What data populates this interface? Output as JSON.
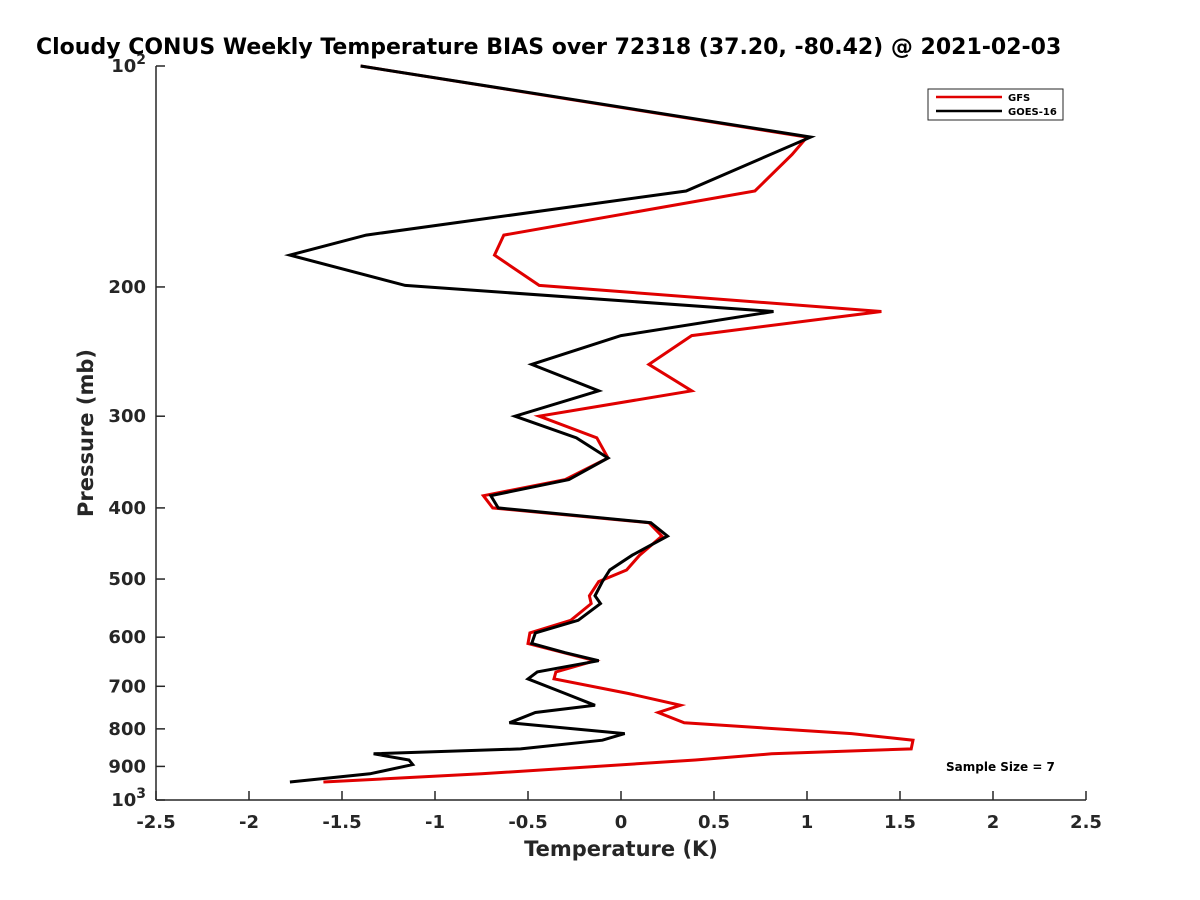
{
  "chart_data": {
    "type": "line",
    "title": "Cloudy CONUS Weekly Temperature BIAS over 72318 (37.20, -80.42) @ 2021-02-03",
    "xlabel": "Temperature (K)",
    "ylabel": "Pressure (mb)",
    "xlim": [
      -2.5,
      2.5
    ],
    "ylim": [
      100,
      1000
    ],
    "yscale": "log",
    "y_reversed": true,
    "grid": false,
    "legend_position": "top-right",
    "x_ticks": [
      -2.5,
      -2,
      -1.5,
      -1,
      -0.5,
      0,
      0.5,
      1,
      1.5,
      2,
      2.5
    ],
    "x_tick_labels": [
      "-2.5",
      "-2",
      "-1.5",
      "-1",
      "-0.5",
      "0",
      "0.5",
      "1",
      "1.5",
      "2",
      "2.5"
    ],
    "y_ticks": [
      100,
      200,
      300,
      400,
      500,
      600,
      700,
      800,
      900,
      1000
    ],
    "y_tick_labels": [
      {
        "base": "10",
        "exp": "2"
      },
      {
        "base": "200",
        "exp": ""
      },
      {
        "base": "300",
        "exp": ""
      },
      {
        "base": "400",
        "exp": ""
      },
      {
        "base": "500",
        "exp": ""
      },
      {
        "base": "600",
        "exp": ""
      },
      {
        "base": "700",
        "exp": ""
      },
      {
        "base": "800",
        "exp": ""
      },
      {
        "base": "900",
        "exp": ""
      },
      {
        "base": "10",
        "exp": "3"
      }
    ],
    "annotation": "Sample Size = 7",
    "series": [
      {
        "name": "GFS",
        "color": "#e00000",
        "points": [
          [
            -1.4,
            100
          ],
          [
            1.0,
            125
          ],
          [
            0.92,
            132
          ],
          [
            0.72,
            148
          ],
          [
            -0.63,
            170
          ],
          [
            -0.68,
            181
          ],
          [
            -0.44,
            199
          ],
          [
            1.4,
            216
          ],
          [
            0.38,
            233
          ],
          [
            0.15,
            255
          ],
          [
            0.38,
            277
          ],
          [
            -0.44,
            300
          ],
          [
            -0.13,
            321
          ],
          [
            -0.07,
            342
          ],
          [
            -0.3,
            366
          ],
          [
            -0.74,
            385
          ],
          [
            -0.69,
            400
          ],
          [
            0.15,
            419
          ],
          [
            0.22,
            437
          ],
          [
            0.1,
            464
          ],
          [
            0.03,
            486
          ],
          [
            -0.12,
            504
          ],
          [
            -0.17,
            527
          ],
          [
            -0.16,
            540
          ],
          [
            -0.27,
            569
          ],
          [
            -0.49,
            592
          ],
          [
            -0.5,
            612
          ],
          [
            -0.14,
            646
          ],
          [
            -0.35,
            669
          ],
          [
            -0.36,
            684
          ],
          [
            0.04,
            716
          ],
          [
            0.32,
            743
          ],
          [
            0.2,
            760
          ],
          [
            0.34,
            785
          ],
          [
            1.24,
            812
          ],
          [
            1.57,
            829
          ],
          [
            1.56,
            852
          ],
          [
            0.81,
            865
          ],
          [
            0.4,
            882
          ],
          [
            -0.75,
            921
          ],
          [
            -1.6,
            945
          ]
        ]
      },
      {
        "name": "GOES-16",
        "color": "#000000",
        "points": [
          [
            -1.4,
            100
          ],
          [
            1.02,
            125
          ],
          [
            0.35,
            148
          ],
          [
            -1.37,
            170
          ],
          [
            -1.78,
            181
          ],
          [
            -1.16,
            199
          ],
          [
            0.82,
            216
          ],
          [
            0.0,
            233
          ],
          [
            -0.48,
            255
          ],
          [
            -0.12,
            277
          ],
          [
            -0.57,
            300
          ],
          [
            -0.24,
            321
          ],
          [
            -0.07,
            342
          ],
          [
            -0.28,
            366
          ],
          [
            -0.7,
            385
          ],
          [
            -0.66,
            400
          ],
          [
            0.16,
            419
          ],
          [
            0.25,
            437
          ],
          [
            0.06,
            464
          ],
          [
            -0.06,
            486
          ],
          [
            -0.1,
            504
          ],
          [
            -0.14,
            527
          ],
          [
            -0.11,
            540
          ],
          [
            -0.23,
            569
          ],
          [
            -0.46,
            592
          ],
          [
            -0.48,
            612
          ],
          [
            -0.3,
            630
          ],
          [
            -0.12,
            646
          ],
          [
            -0.45,
            669
          ],
          [
            -0.5,
            684
          ],
          [
            -0.3,
            716
          ],
          [
            -0.14,
            743
          ],
          [
            -0.46,
            760
          ],
          [
            -0.6,
            785
          ],
          [
            0.02,
            812
          ],
          [
            -0.1,
            829
          ],
          [
            -0.54,
            852
          ],
          [
            -1.33,
            865
          ],
          [
            -1.14,
            882
          ],
          [
            -1.12,
            895
          ],
          [
            -1.35,
            921
          ],
          [
            -1.78,
            945
          ]
        ]
      }
    ]
  }
}
